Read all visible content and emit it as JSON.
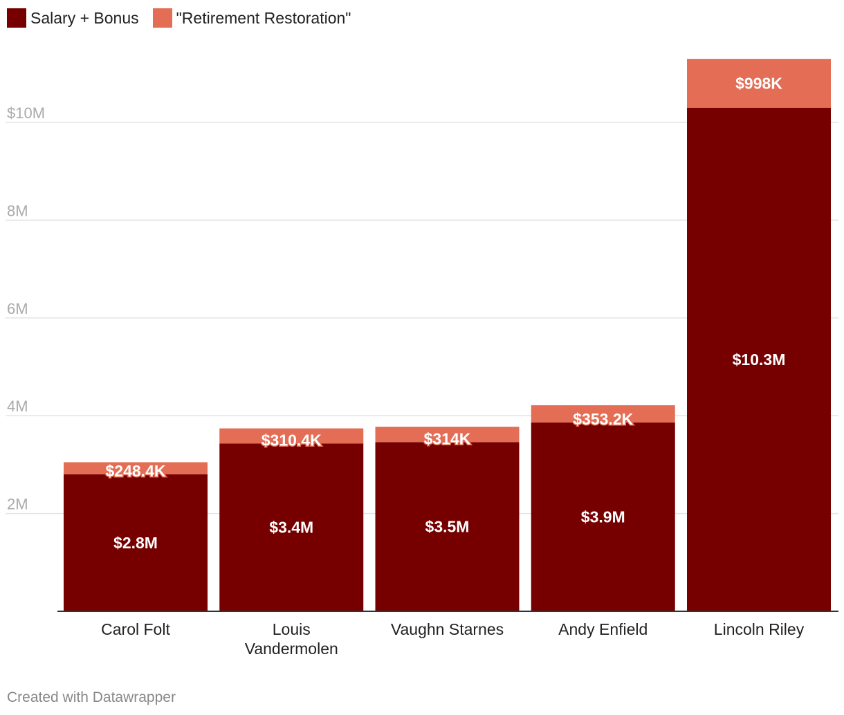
{
  "chart_data": {
    "type": "bar",
    "stacked": true,
    "categories": [
      "Carol Folt",
      "Louis Vandermolen",
      "Vaughn Starnes",
      "Andy Enfield",
      "Lincoln Riley"
    ],
    "category_lines": [
      [
        "Carol Folt"
      ],
      [
        "Louis",
        "Vandermolen"
      ],
      [
        "Vaughn Starnes"
      ],
      [
        "Andy Enfield"
      ],
      [
        "Lincoln Riley"
      ]
    ],
    "series": [
      {
        "name": "Salary + Bonus",
        "color": "#760000",
        "values": [
          2800000,
          3430000,
          3460000,
          3860000,
          10300000
        ],
        "labels": [
          "$2.8M",
          "$3.4M",
          "$3.5M",
          "$3.9M",
          "$10.3M"
        ]
      },
      {
        "name": "\"Retirement Restoration\"",
        "color": "#e36d55",
        "values": [
          248400,
          310400,
          314000,
          353200,
          998000
        ],
        "labels": [
          "$248.4K",
          "$310.4K",
          "$314K",
          "$353.2K",
          "$998K"
        ]
      }
    ],
    "y_ticks": [
      2000000,
      4000000,
      6000000,
      8000000,
      10000000
    ],
    "y_tick_labels": [
      "2M",
      "4M",
      "6M",
      "8M",
      "$10M"
    ],
    "ylim": [
      0,
      11300000
    ],
    "grid": true,
    "legend_position": "top-left"
  },
  "footer": "Created with Datawrapper"
}
